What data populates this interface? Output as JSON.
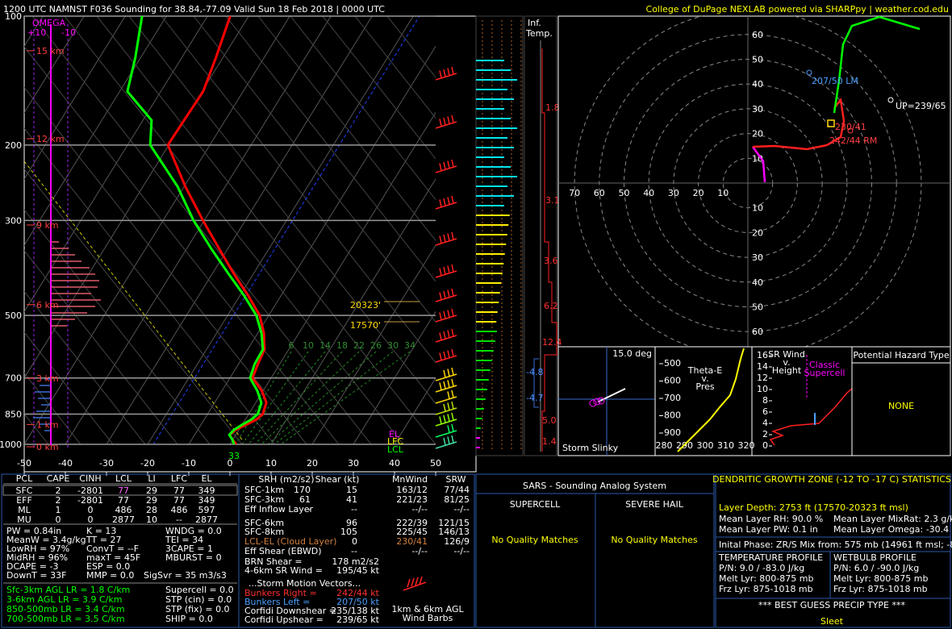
{
  "header": {
    "title": "1200 UTC NAMNST F036 Sounding for 38.84,-77.09 Valid  Sun 18 Feb 2018 | 0000 UTC",
    "credit": "College of DuPage NEXLAB powered via SHARPpy | weather.cod.edu"
  },
  "chart_data": [
    {
      "type": "skewt",
      "log_y": true,
      "ylim": [
        1000,
        100
      ],
      "yticks": [
        100,
        200,
        300,
        500,
        700,
        850,
        1000
      ],
      "xlim": [
        -50,
        50
      ],
      "xticks": [
        -50,
        -40,
        -30,
        -20,
        -10,
        0,
        10,
        20,
        30,
        40,
        50
      ],
      "pressure": [
        1000,
        975,
        950,
        925,
        900,
        875,
        850,
        800,
        750,
        700,
        650,
        600,
        550,
        500,
        450,
        400,
        350,
        300,
        250,
        200,
        175,
        150,
        125,
        100
      ],
      "series": [
        {
          "color": "#ff0000",
          "values": [
            1.6,
            -0.1,
            -1.5,
            -0.8,
            1.0,
            2.7,
            3.4,
            2.6,
            -0.3,
            -4.5,
            -5.3,
            -5.9,
            -8.5,
            -12.2,
            -17.9,
            -24.7,
            -32.0,
            -40.3,
            -49.7,
            -60.2,
            -60.0,
            -59.7,
            -61.7,
            -64.5
          ]
        },
        {
          "color": "#00ff00",
          "values": [
            1.0,
            -0.1,
            -1.6,
            -1.2,
            0,
            1.5,
            2.2,
            1.4,
            -1.4,
            -5.1,
            -6.1,
            -6.3,
            -9.1,
            -13.0,
            -18.9,
            -26.0,
            -33.9,
            -42.6,
            -51.6,
            -64.5,
            -67.9,
            -78.1,
            -81.3,
            -85.9
          ]
        }
      ],
      "height_ticks": [
        {
          "value": 15,
          "label": "15 km"
        },
        {
          "value": 12,
          "label": "12 km"
        },
        {
          "value": 9,
          "label": "9 km"
        },
        {
          "value": 6,
          "label": "6 km"
        },
        {
          "value": 3,
          "label": "3 km"
        },
        {
          "value": 1,
          "label": "1 km"
        },
        {
          "value": 0,
          "label": "0 km"
        }
      ],
      "omega_label": "OMEGA",
      "omega_ticks": [
        "+10",
        "-10"
      ],
      "mixing_ratio_labels": [
        6,
        10,
        14,
        18,
        22,
        26,
        30,
        34
      ],
      "annotations": {
        "dgz_top": "20323'",
        "dgz_bottom": "17570'",
        "el": "EL",
        "lfc": "LFC",
        "lcl": "LCL",
        "sfc_temp": 33
      }
    },
    {
      "type": "hodograph",
      "ticks": [
        10,
        20,
        30,
        40,
        50,
        60,
        70
      ],
      "annotations": {
        "lm": "207/50 LM",
        "up": "UP=239/65",
        "mean": "230/41",
        "rm": "242/44 RM"
      }
    }
  ],
  "inferred_temp": {
    "title": [
      "Inf.",
      "Temp."
    ],
    "labels": [
      "1.8",
      "3.1",
      "3.6",
      "6.2",
      "12.4",
      "-4.8",
      "-4.7",
      "5.0",
      "1.4"
    ]
  },
  "slinky": {
    "angle": "15.0 deg",
    "title": "Storm Slinky"
  },
  "theta_e": {
    "title": [
      "Theta-E",
      "v.",
      "Pres"
    ],
    "yticks": [
      500,
      600,
      700,
      800,
      900
    ],
    "xticks": [
      280,
      290,
      300,
      310,
      320
    ]
  },
  "sr_wind": {
    "title": [
      "SR Wind",
      "v.",
      "Height"
    ],
    "note": [
      "Classic",
      "Supercell"
    ],
    "yticks": [
      16,
      14,
      12,
      10,
      8,
      6,
      4,
      2,
      0
    ]
  },
  "hazard": {
    "title": "Potential Hazard Type",
    "value": "NONE"
  },
  "parcel_table": {
    "columns": [
      "PCL",
      "CAPE",
      "CINH",
      "LCL",
      "LI",
      "LFC",
      "EL"
    ],
    "rows": [
      [
        "SFC",
        2,
        -2801,
        77,
        29,
        77,
        349
      ],
      [
        "EFF",
        2,
        -2801,
        77,
        29,
        77,
        349
      ],
      [
        "ML",
        1,
        0,
        486,
        28,
        486,
        597
      ],
      [
        "MU",
        0,
        0,
        2877,
        10,
        "--",
        2877
      ]
    ]
  },
  "indices": [
    [
      "PW = 0.84in",
      "K = 13",
      "WNDG = 0.0"
    ],
    [
      "MeanW = 3.4g/kg",
      "TT = 27",
      "TEI = 34"
    ],
    [
      "LowRH = 97%",
      "ConvT = --F",
      "3CAPE = 1"
    ],
    [
      "MidRH = 96%",
      "maxT = 45F",
      "MBURST = 0"
    ],
    [
      "DCAPE = -3",
      "ESP = 0.0"
    ],
    [
      "DownT = 33F",
      "MMP = 0.0",
      "SigSvr = 35 m3/s3"
    ]
  ],
  "lapse_rates": [
    "Sfc-3km AGL LR = 1.8 C/km",
    "3-6km AGL LR = 3.9 C/km",
    "850-500mb LR = 3.4 C/km",
    "700-500mb LR = 3.5 C/km"
  ],
  "composites": [
    "Supercell = 0.0",
    "STP (cin) = 0.0",
    "STP (fix) = 0.0",
    "SHIP = 0.0"
  ],
  "kinematics": {
    "columns": [
      "SRH (m2/s2)",
      "Shear (kt)",
      "MnWind",
      "SRW"
    ],
    "rows": [
      {
        "label": "SFC-1km",
        "srh": 170,
        "shear": 15,
        "mnwind": "163/12",
        "srw": "77/44"
      },
      {
        "label": "SFC-3km",
        "srh": 61,
        "shear": 41,
        "mnwind": "221/23",
        "srw": "81/25"
      },
      {
        "label": "Eff Inflow Layer",
        "srh": "--",
        "shear": "--",
        "mnwind": "--/--",
        "srw": "--/--"
      },
      {
        "label": "SFC-6km",
        "shear": 96,
        "mnwind": "222/39",
        "srw": "121/15"
      },
      {
        "label": "SFC-8km",
        "shear": 105,
        "mnwind": "225/45",
        "srw": "146/13"
      },
      {
        "label": "LCL-EL (Cloud Layer)",
        "shear": 0,
        "mnwind": "230/41",
        "srw": "126/9"
      },
      {
        "label": "Eff Shear (EBWD)",
        "shear": "--",
        "mnwind": "--/--",
        "srw": "--/--"
      }
    ],
    "other": [
      [
        "BRN Shear =",
        "178 m2/s2"
      ],
      [
        "4-6km SR Wind =",
        "195/45 kt"
      ]
    ],
    "motion_title": "...Storm Motion Vectors...",
    "motions": [
      [
        "Bunkers Right =",
        "242/44 kt"
      ],
      [
        "Bunkers Left =",
        "207/50 kt"
      ],
      [
        "Corfidi Downshear =",
        "235/138 kt"
      ],
      [
        "Corfidi Upshear =",
        "239/65 kt"
      ]
    ],
    "barb_caption": [
      "1km & 6km AGL",
      "Wind Barbs"
    ]
  },
  "sars": {
    "title": "SARS - Sounding Analog System",
    "supercell": "SUPERCELL",
    "hail": "SEVERE HAIL",
    "supercell_result": "No Quality Matches",
    "hail_result": "No Quality Matches"
  },
  "dgz": {
    "title": "DENDRITIC GROWTH ZONE (-12 TO -17 C) STATISTICS",
    "depth": "Layer Depth: 2753 ft (17570-20323 ft msl)",
    "stats": [
      [
        "Mean Layer RH: 90.0 %",
        "Mean Layer MixRat: 2.3 g/kg"
      ],
      [
        "Mean Layer PW: 0.1 in",
        "Mean Layer Omega: -30.4 ub/s"
      ]
    ],
    "phase": "Inital Phase: ZR/S Mix from: 575 mb (14961 ft msl; -8.4 C)",
    "temp_profile": [
      "TEMPERATURE PROFILE",
      "P/N: 9.0 / -83.0 J/kg",
      "Melt Lyr: 800-875 mb",
      "Frz Lyr: 875-1018 mb"
    ],
    "wetbulb_profile": [
      "WETBULB PROFILE",
      "P/N: 6.0 / -90.0 J/kg",
      "Melt Lyr: 800-875 mb",
      "Frz Lyr: 875-1018 mb"
    ],
    "precip_title": "*** BEST GUESS PRECIP TYPE ***",
    "precip": "Sleet"
  }
}
